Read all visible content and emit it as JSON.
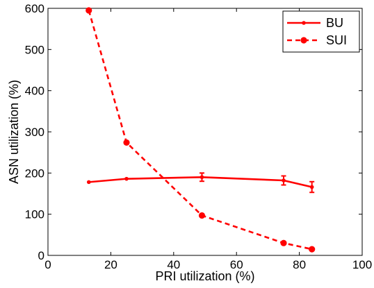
{
  "chart_data": {
    "type": "line",
    "title": "",
    "xlabel": "PRI utilization (%)",
    "ylabel": "ASN utilization (%)",
    "xlim": [
      0,
      100
    ],
    "ylim": [
      0,
      600
    ],
    "xticks": [
      0,
      20,
      40,
      60,
      80,
      100
    ],
    "yticks": [
      0,
      100,
      200,
      300,
      400,
      500,
      600
    ],
    "grid": false,
    "legend_position": "top-right",
    "series": [
      {
        "name": "BU",
        "color": "#ff0000",
        "line_style": "solid",
        "marker": "small-dot",
        "points": [
          {
            "x": 13,
            "y": 178,
            "err": 0
          },
          {
            "x": 25,
            "y": 186,
            "err": 0
          },
          {
            "x": 49,
            "y": 190,
            "err": 10
          },
          {
            "x": 75,
            "y": 182,
            "err": 11
          },
          {
            "x": 84,
            "y": 166,
            "err": 13
          }
        ]
      },
      {
        "name": "SUI",
        "color": "#ff0000",
        "line_style": "dashed",
        "marker": "circle",
        "points": [
          {
            "x": 13,
            "y": 595,
            "err": 0
          },
          {
            "x": 25,
            "y": 274,
            "err": 0
          },
          {
            "x": 49,
            "y": 97,
            "err": 0
          },
          {
            "x": 75,
            "y": 30,
            "err": 0
          },
          {
            "x": 84,
            "y": 15,
            "err": 0
          }
        ]
      }
    ]
  }
}
